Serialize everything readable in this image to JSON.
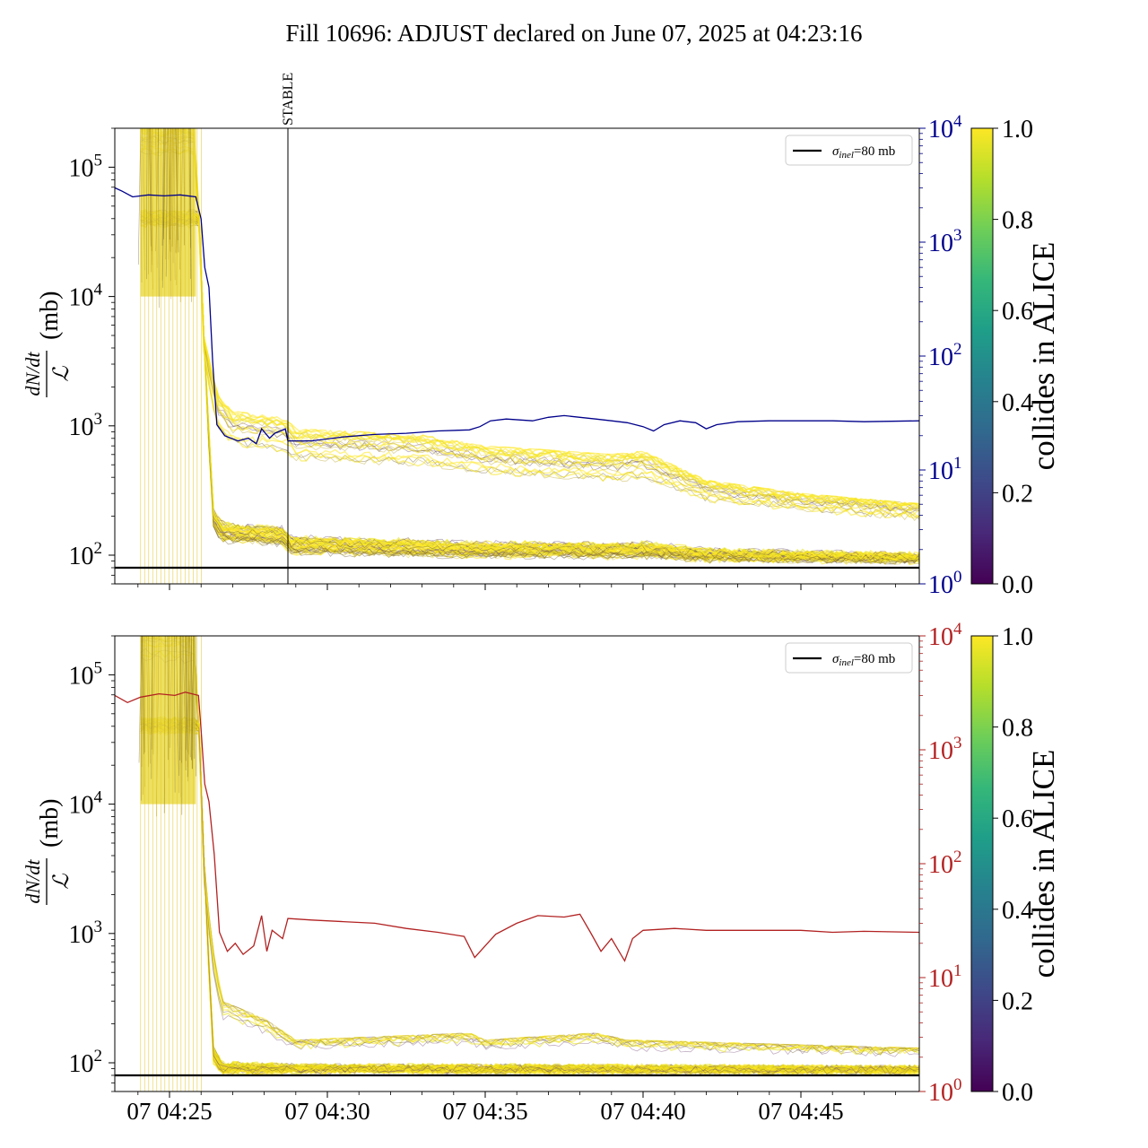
{
  "figure": {
    "title": "Fill 10696: ADJUST declared on June 07, 2025 at 04:23:16"
  },
  "colors": {
    "viridis": [
      "#440154",
      "#482878",
      "#3e4989",
      "#31688e",
      "#26828e",
      "#1f9e89",
      "#35b779",
      "#6ece58",
      "#b5de2b",
      "#fde725"
    ],
    "top_secondary_line": "#00008b",
    "bottom_secondary_line": "#b22222",
    "reference_line": "#000000"
  },
  "chart_data": [
    {
      "type": "line",
      "panel": "top",
      "ylabel_numerator": "dN/dt",
      "ylabel_denominator": "ℒ",
      "ylabel_unit": "(mb)",
      "y_scale": "log",
      "ylim": [
        60,
        200000
      ],
      "y_ticks": [
        {
          "value": 100,
          "label": "10",
          "exp": "2"
        },
        {
          "value": 1000,
          "label": "10",
          "exp": "3"
        },
        {
          "value": 10000,
          "label": "10",
          "exp": "4"
        },
        {
          "value": 100000,
          "label": "10",
          "exp": "5"
        }
      ],
      "x_range": [
        "04:23:16",
        "04:48:45"
      ],
      "x_ticks": [
        "07 04:25",
        "07 04:30",
        "07 04:35",
        "07 04:40",
        "07 04:45"
      ],
      "x_tick_times": [
        "04:25:00",
        "04:30:00",
        "04:35:00",
        "04:40:00",
        "04:45:00"
      ],
      "show_x_labels": false,
      "secondary_axis": {
        "color": "#00008b",
        "y_scale": "log",
        "ylim": [
          1,
          10000
        ],
        "ticks": [
          {
            "value": 1,
            "label": "10",
            "exp": "0"
          },
          {
            "value": 10,
            "label": "10",
            "exp": "1"
          },
          {
            "value": 100,
            "label": "10",
            "exp": "2"
          },
          {
            "value": 1000,
            "label": "10",
            "exp": "3"
          },
          {
            "value": 10000,
            "label": "10",
            "exp": "4"
          }
        ],
        "series": {
          "points": [
            [
              "04:23:16",
              3000
            ],
            [
              "04:23:30",
              2800
            ],
            [
              "04:23:50",
              2500
            ],
            [
              "04:24:20",
              2600
            ],
            [
              "04:24:50",
              2550
            ],
            [
              "04:25:20",
              2600
            ],
            [
              "04:25:50",
              2500
            ],
            [
              "04:26:00",
              1600
            ],
            [
              "04:26:07",
              600
            ],
            [
              "04:26:15",
              400
            ],
            [
              "04:26:22",
              90
            ],
            [
              "04:26:30",
              25
            ],
            [
              "04:26:45",
              20
            ],
            [
              "04:27:10",
              18
            ],
            [
              "04:27:30",
              19
            ],
            [
              "04:27:45",
              17
            ],
            [
              "04:27:55",
              23
            ],
            [
              "04:28:10",
              19
            ],
            [
              "04:28:20",
              21
            ],
            [
              "04:28:40",
              23
            ],
            [
              "04:28:45",
              18
            ],
            [
              "04:29:30",
              18
            ],
            [
              "04:30:30",
              19.5
            ],
            [
              "04:31:30",
              20.5
            ],
            [
              "04:32:30",
              21
            ],
            [
              "04:33:30",
              22
            ],
            [
              "04:34:30",
              22.5
            ],
            [
              "04:34:50",
              24
            ],
            [
              "04:35:10",
              27
            ],
            [
              "04:35:40",
              28
            ],
            [
              "04:36:30",
              27
            ],
            [
              "04:37:00",
              29
            ],
            [
              "04:37:30",
              30
            ],
            [
              "04:38:00",
              29
            ],
            [
              "04:38:30",
              28
            ],
            [
              "04:39:00",
              27
            ],
            [
              "04:39:30",
              26
            ],
            [
              "04:40:00",
              24
            ],
            [
              "04:40:20",
              22
            ],
            [
              "04:40:40",
              25
            ],
            [
              "04:41:10",
              27
            ],
            [
              "04:41:40",
              26
            ],
            [
              "04:42:00",
              23
            ],
            [
              "04:42:20",
              25
            ],
            [
              "04:43:00",
              26.5
            ],
            [
              "04:44:00",
              27
            ],
            [
              "04:45:00",
              27
            ],
            [
              "04:46:00",
              27
            ],
            [
              "04:47:00",
              26.5
            ],
            [
              "04:48:45",
              27
            ]
          ]
        }
      },
      "vertical_marker": {
        "label": "STABLE",
        "time": "04:28:45"
      },
      "reference_line": {
        "value": 80,
        "legend": "σinel=80 mb",
        "sub": "inel",
        "text": "=80 mb"
      },
      "colorbar": {
        "label": "collides in ALICE",
        "range": [
          0.0,
          1.0
        ],
        "ticks": [
          "0.0",
          "0.2",
          "0.4",
          "0.6",
          "0.8",
          "1.0"
        ]
      },
      "bunch_envelope": {
        "description_free": true,
        "points": [
          [
            "04:24:05",
            200000,
            30000
          ],
          [
            "04:25:50",
            200000,
            25000
          ],
          [
            "04:26:05",
            5000,
            1500
          ],
          [
            "04:26:15",
            3500,
            300
          ],
          [
            "04:26:30",
            1800,
            110
          ],
          [
            "04:27:00",
            1300,
            95
          ],
          [
            "04:28:40",
            1150,
            90
          ],
          [
            "04:29:00",
            950,
            90
          ],
          [
            "04:31:00",
            900,
            88
          ],
          [
            "04:33:00",
            850,
            87
          ],
          [
            "04:35:00",
            700,
            86
          ],
          [
            "04:37:00",
            650,
            86
          ],
          [
            "04:39:00",
            600,
            85
          ],
          [
            "04:40:00",
            640,
            85
          ],
          [
            "04:42:00",
            380,
            84
          ],
          [
            "04:45:00",
            300,
            84
          ],
          [
            "04:48:45",
            250,
            84
          ]
        ],
        "bulk": [
          [
            "04:24:05",
            40000,
            40000
          ],
          [
            "04:26:00",
            40000,
            40000
          ],
          [
            "04:26:20",
            900,
            200
          ],
          [
            "04:26:40",
            400,
            150
          ],
          [
            "04:28:40",
            350,
            140
          ],
          [
            "04:28:45",
            300,
            120
          ],
          [
            "04:32:00",
            260,
            115
          ],
          [
            "04:34:40",
            230,
            110
          ],
          [
            "04:35:30",
            200,
            110
          ],
          [
            "04:37:00",
            220,
            110
          ],
          [
            "04:39:00",
            200,
            108
          ],
          [
            "04:40:00",
            250,
            110
          ],
          [
            "04:42:00",
            160,
            100
          ],
          [
            "04:48:45",
            120,
            95
          ]
        ]
      }
    },
    {
      "type": "line",
      "panel": "bottom",
      "ylabel_numerator": "dN/dt",
      "ylabel_denominator": "ℒ",
      "ylabel_unit": "(mb)",
      "y_scale": "log",
      "ylim": [
        60,
        200000
      ],
      "y_ticks": [
        {
          "value": 100,
          "label": "10",
          "exp": "2"
        },
        {
          "value": 1000,
          "label": "10",
          "exp": "3"
        },
        {
          "value": 10000,
          "label": "10",
          "exp": "4"
        },
        {
          "value": 100000,
          "label": "10",
          "exp": "5"
        }
      ],
      "x_range": [
        "04:23:16",
        "04:48:45"
      ],
      "x_ticks": [
        "07 04:25",
        "07 04:30",
        "07 04:35",
        "07 04:40",
        "07 04:45"
      ],
      "x_tick_times": [
        "04:25:00",
        "04:30:00",
        "04:35:00",
        "04:40:00",
        "04:45:00"
      ],
      "show_x_labels": true,
      "secondary_axis": {
        "color": "#b22222",
        "y_scale": "log",
        "ylim": [
          1,
          10000
        ],
        "ticks": [
          {
            "value": 1,
            "label": "10",
            "exp": "0"
          },
          {
            "value": 10,
            "label": "10",
            "exp": "1"
          },
          {
            "value": 100,
            "label": "10",
            "exp": "2"
          },
          {
            "value": 1000,
            "label": "10",
            "exp": "3"
          },
          {
            "value": 10000,
            "label": "10",
            "exp": "4"
          }
        ],
        "series": {
          "points": [
            [
              "04:23:16",
              3000
            ],
            [
              "04:23:40",
              2600
            ],
            [
              "04:24:05",
              2900
            ],
            [
              "04:24:40",
              3100
            ],
            [
              "04:25:10",
              3000
            ],
            [
              "04:25:30",
              3200
            ],
            [
              "04:25:55",
              3000
            ],
            [
              "04:26:00",
              1500
            ],
            [
              "04:26:07",
              500
            ],
            [
              "04:26:15",
              350
            ],
            [
              "04:26:25",
              120
            ],
            [
              "04:26:35",
              25
            ],
            [
              "04:26:50",
              17
            ],
            [
              "04:27:05",
              20
            ],
            [
              "04:27:20",
              16
            ],
            [
              "04:27:40",
              19
            ],
            [
              "04:27:55",
              35
            ],
            [
              "04:28:05",
              17
            ],
            [
              "04:28:15",
              26
            ],
            [
              "04:28:35",
              22
            ],
            [
              "04:28:45",
              33
            ],
            [
              "04:29:30",
              32
            ],
            [
              "04:30:30",
              31
            ],
            [
              "04:31:30",
              30
            ],
            [
              "04:32:30",
              27
            ],
            [
              "04:33:30",
              25
            ],
            [
              "04:34:20",
              23
            ],
            [
              "04:34:40",
              15
            ],
            [
              "04:35:00",
              19
            ],
            [
              "04:35:20",
              24
            ],
            [
              "04:36:00",
              30
            ],
            [
              "04:36:40",
              35
            ],
            [
              "04:37:30",
              34
            ],
            [
              "04:38:00",
              36
            ],
            [
              "04:38:20",
              25
            ],
            [
              "04:38:40",
              17
            ],
            [
              "04:39:00",
              22
            ],
            [
              "04:39:25",
              14
            ],
            [
              "04:39:40",
              22
            ],
            [
              "04:40:00",
              26
            ],
            [
              "04:41:00",
              27
            ],
            [
              "04:42:00",
              26
            ],
            [
              "04:43:00",
              26
            ],
            [
              "04:44:00",
              26
            ],
            [
              "04:45:00",
              26
            ],
            [
              "04:46:00",
              25
            ],
            [
              "04:47:00",
              25.5
            ],
            [
              "04:48:45",
              25
            ]
          ]
        }
      },
      "reference_line": {
        "value": 80,
        "legend": "σinel=80 mb",
        "sub": "inel",
        "text": "=80 mb"
      },
      "colorbar": {
        "label": "collides in ALICE",
        "range": [
          0.0,
          1.0
        ],
        "ticks": [
          "0.0",
          "0.2",
          "0.4",
          "0.6",
          "0.8",
          "1.0"
        ]
      },
      "bunch_envelope": {
        "points": [
          [
            "04:24:05",
            200000,
            30000
          ],
          [
            "04:25:50",
            200000,
            25000
          ],
          [
            "04:26:05",
            4000,
            600
          ],
          [
            "04:26:20",
            900,
            100
          ],
          [
            "04:26:40",
            300,
            82
          ],
          [
            "04:28:00",
            220,
            82
          ],
          [
            "04:29:00",
            150,
            82
          ],
          [
            "04:34:30",
            170,
            82
          ],
          [
            "04:35:00",
            150,
            82
          ],
          [
            "04:38:30",
            170,
            82
          ],
          [
            "04:39:30",
            150,
            82
          ],
          [
            "04:48:45",
            130,
            82
          ]
        ],
        "bulk": [
          [
            "04:24:05",
            40000,
            40000
          ],
          [
            "04:26:00",
            40000,
            40000
          ],
          [
            "04:26:20",
            400,
            120
          ],
          [
            "04:26:40",
            110,
            90
          ],
          [
            "04:48:45",
            95,
            88
          ]
        ]
      }
    }
  ]
}
